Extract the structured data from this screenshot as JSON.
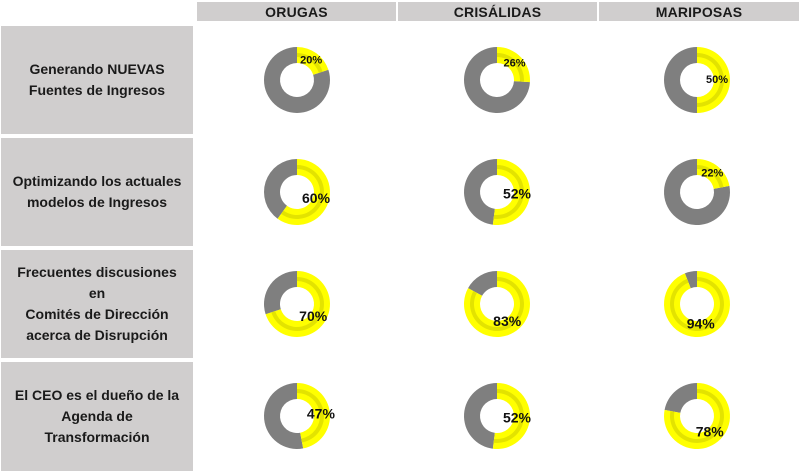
{
  "colors": {
    "filled": "#ffff00",
    "filled_inner": "#e3e300",
    "remaining": "#7f7f7f",
    "header_bg": "#d0cece"
  },
  "chart_data": {
    "type": "pie",
    "variant": "donut-grid",
    "columns": [
      "ORUGAS",
      "CRISÁLIDAS",
      "MARIPOSAS"
    ],
    "rows": [
      {
        "label_lines": [
          "Generando NUEVAS",
          "Fuentes de Ingresos"
        ],
        "values": [
          20,
          26,
          50
        ],
        "labels": [
          "20%",
          "26%",
          "50%"
        ]
      },
      {
        "label_lines": [
          "Optimizando los actuales",
          "modelos de Ingresos"
        ],
        "values": [
          60,
          52,
          22
        ],
        "labels": [
          "60%",
          "52%",
          "22%"
        ]
      },
      {
        "label_lines": [
          "Frecuentes discusiones en",
          "Comités de Dirección",
          "acerca de Disrupción"
        ],
        "values": [
          70,
          83,
          94
        ],
        "labels": [
          "70%",
          "83%",
          "94%"
        ]
      },
      {
        "label_lines": [
          "El CEO es el  dueño de la",
          "Agenda de Transformación"
        ],
        "values": [
          47,
          52,
          78
        ],
        "labels": [
          "47%",
          "52%",
          "78%"
        ]
      }
    ]
  }
}
